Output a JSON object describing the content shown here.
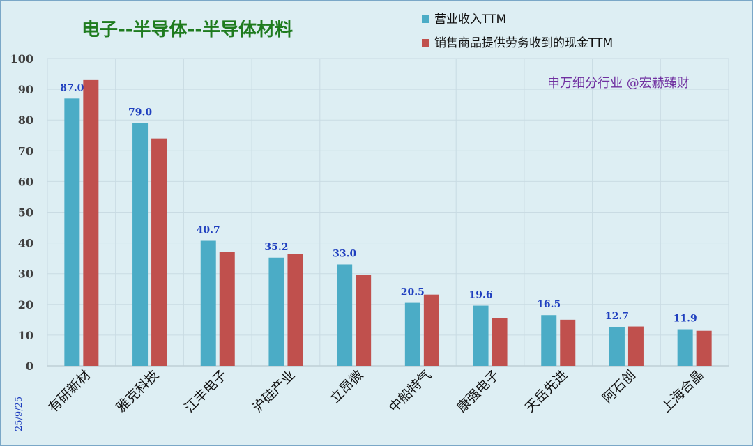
{
  "chart_data": {
    "type": "bar",
    "title": "电子--半导体--半导体材料",
    "annotation": "申万细分行业 @宏赫臻财",
    "date_label": "25/9/25",
    "categories": [
      "有研新材",
      "雅克科技",
      "江丰电子",
      "沪硅产业",
      "立昂微",
      "中船特气",
      "康强电子",
      "天岳先进",
      "阿石创",
      "上海合晶"
    ],
    "series": [
      {
        "name": "营业收入TTM",
        "color": "#4bacc6",
        "values": [
          87.0,
          79.0,
          40.7,
          35.2,
          33.0,
          20.5,
          19.6,
          16.5,
          12.7,
          11.9
        ],
        "labels": [
          "87.0",
          "79.0",
          "40.7",
          "35.2",
          "33.0",
          "20.5",
          "19.6",
          "16.5",
          "12.7",
          "11.9"
        ]
      },
      {
        "name": "销售商品提供劳务收到的现金TTM",
        "color": "#c0504d",
        "values": [
          93.0,
          74.0,
          37.0,
          36.5,
          29.5,
          23.2,
          15.5,
          15.0,
          12.8,
          11.4
        ]
      }
    ],
    "ylim": [
      0,
      100
    ],
    "yticks": [
      0,
      10,
      20,
      30,
      40,
      50,
      60,
      70,
      80,
      90,
      100
    ],
    "legend_position": "top-right",
    "grid": true,
    "colors": {
      "background": "#ddeef3",
      "title": "#1e7b1e",
      "annotation": "#7030a0",
      "data_label": "#1f3fbf",
      "grid": "#c9dbe3",
      "axis_text": "#404040",
      "date_label": "#1f3fbf"
    }
  }
}
